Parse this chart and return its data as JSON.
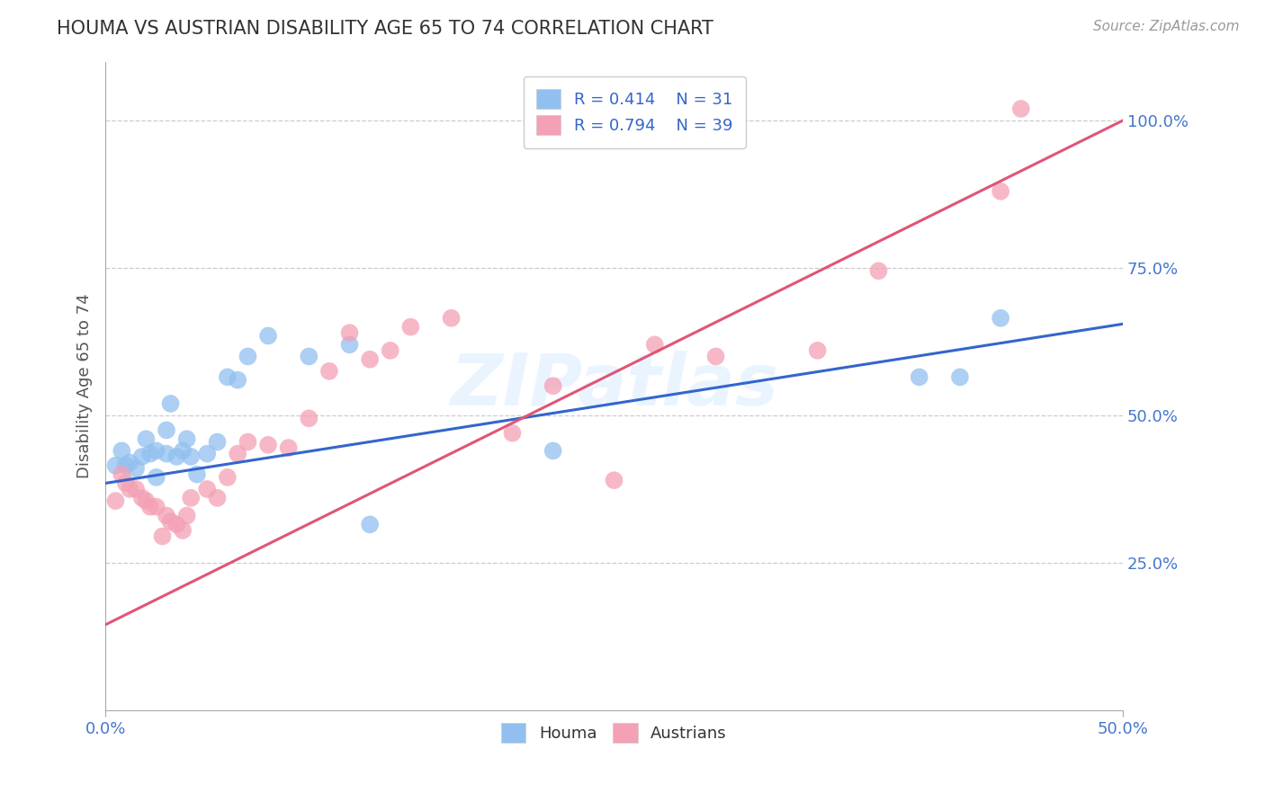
{
  "title": "HOUMA VS AUSTRIAN DISABILITY AGE 65 TO 74 CORRELATION CHART",
  "source_text": "Source: ZipAtlas.com",
  "ylabel": "Disability Age 65 to 74",
  "x_min": 0.0,
  "x_max": 0.5,
  "y_min": 0.0,
  "y_max": 1.1,
  "x_ticks": [
    0.0,
    0.5
  ],
  "x_tick_labels": [
    "0.0%",
    "50.0%"
  ],
  "y_ticks": [
    0.0,
    0.25,
    0.5,
    0.75,
    1.0
  ],
  "y_tick_labels": [
    "",
    "25.0%",
    "50.0%",
    "75.0%",
    "100.0%"
  ],
  "houma_R": 0.414,
  "houma_N": 31,
  "austrians_R": 0.794,
  "austrians_N": 39,
  "houma_color": "#91C0F0",
  "austrians_color": "#F4A0B5",
  "houma_line_color": "#3366CC",
  "austrians_line_color": "#E05575",
  "watermark": "ZIPatlas",
  "background_color": "#FFFFFF",
  "houma_line_x0": 0.0,
  "houma_line_y0": 0.385,
  "houma_line_x1": 0.5,
  "houma_line_y1": 0.655,
  "austrians_line_x0": 0.0,
  "austrians_line_y0": 0.145,
  "austrians_line_x1": 0.5,
  "austrians_line_y1": 1.0,
  "houma_x": [
    0.005,
    0.008,
    0.01,
    0.012,
    0.015,
    0.018,
    0.02,
    0.022,
    0.025,
    0.025,
    0.03,
    0.03,
    0.032,
    0.035,
    0.038,
    0.04,
    0.042,
    0.045,
    0.05,
    0.055,
    0.06,
    0.065,
    0.07,
    0.08,
    0.1,
    0.12,
    0.13,
    0.22,
    0.4,
    0.42,
    0.44
  ],
  "houma_y": [
    0.415,
    0.44,
    0.415,
    0.42,
    0.41,
    0.43,
    0.46,
    0.435,
    0.44,
    0.395,
    0.435,
    0.475,
    0.52,
    0.43,
    0.44,
    0.46,
    0.43,
    0.4,
    0.435,
    0.455,
    0.565,
    0.56,
    0.6,
    0.635,
    0.6,
    0.62,
    0.315,
    0.44,
    0.565,
    0.565,
    0.665
  ],
  "austrians_x": [
    0.005,
    0.008,
    0.01,
    0.012,
    0.015,
    0.018,
    0.02,
    0.022,
    0.025,
    0.028,
    0.03,
    0.032,
    0.035,
    0.038,
    0.04,
    0.042,
    0.05,
    0.055,
    0.06,
    0.065,
    0.07,
    0.08,
    0.09,
    0.1,
    0.11,
    0.12,
    0.13,
    0.14,
    0.15,
    0.17,
    0.2,
    0.22,
    0.25,
    0.27,
    0.3,
    0.35,
    0.38,
    0.44,
    0.45
  ],
  "austrians_y": [
    0.355,
    0.4,
    0.385,
    0.375,
    0.375,
    0.36,
    0.355,
    0.345,
    0.345,
    0.295,
    0.33,
    0.32,
    0.315,
    0.305,
    0.33,
    0.36,
    0.375,
    0.36,
    0.395,
    0.435,
    0.455,
    0.45,
    0.445,
    0.495,
    0.575,
    0.64,
    0.595,
    0.61,
    0.65,
    0.665,
    0.47,
    0.55,
    0.39,
    0.62,
    0.6,
    0.61,
    0.745,
    0.88,
    1.02
  ]
}
